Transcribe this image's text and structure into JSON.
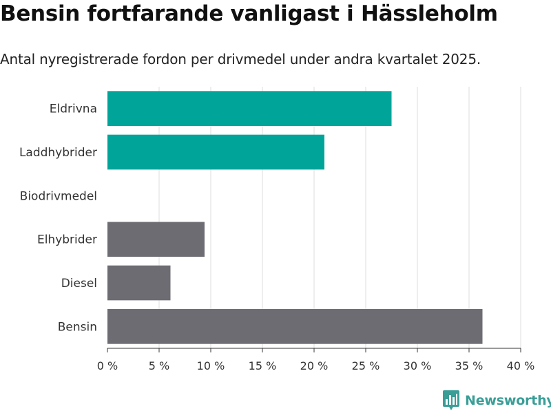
{
  "title": "Bensin fortfarande vanligast i Hässleholm",
  "subtitle": "Antal nyregistrerade fordon per drivmedel under andra kvartalet 2025.",
  "brand": {
    "name": "Newsworthy",
    "color": "#3a9e97",
    "icon": "bar-chart-speech-bubble-icon"
  },
  "colors": {
    "highlight": "#00a499",
    "default": "#6d6c72",
    "grid": "#dddddd",
    "axis": "#333333"
  },
  "chart_data": {
    "type": "bar",
    "orientation": "horizontal",
    "categories": [
      "Eldrivna",
      "Laddhybrider",
      "Biodrivmedel",
      "Elhybrider",
      "Diesel",
      "Bensin"
    ],
    "values": [
      27.5,
      21.0,
      0,
      9.4,
      6.1,
      36.3
    ],
    "highlighted": [
      true,
      true,
      false,
      false,
      false,
      false
    ],
    "xlim": [
      0,
      40
    ],
    "xticks": [
      0,
      5,
      10,
      15,
      20,
      25,
      30,
      35,
      40
    ],
    "tick_labels": [
      "0 %",
      "5 %",
      "10 %",
      "15 %",
      "20 %",
      "25 %",
      "30 %",
      "35 %",
      "40 %"
    ],
    "grid": true
  }
}
